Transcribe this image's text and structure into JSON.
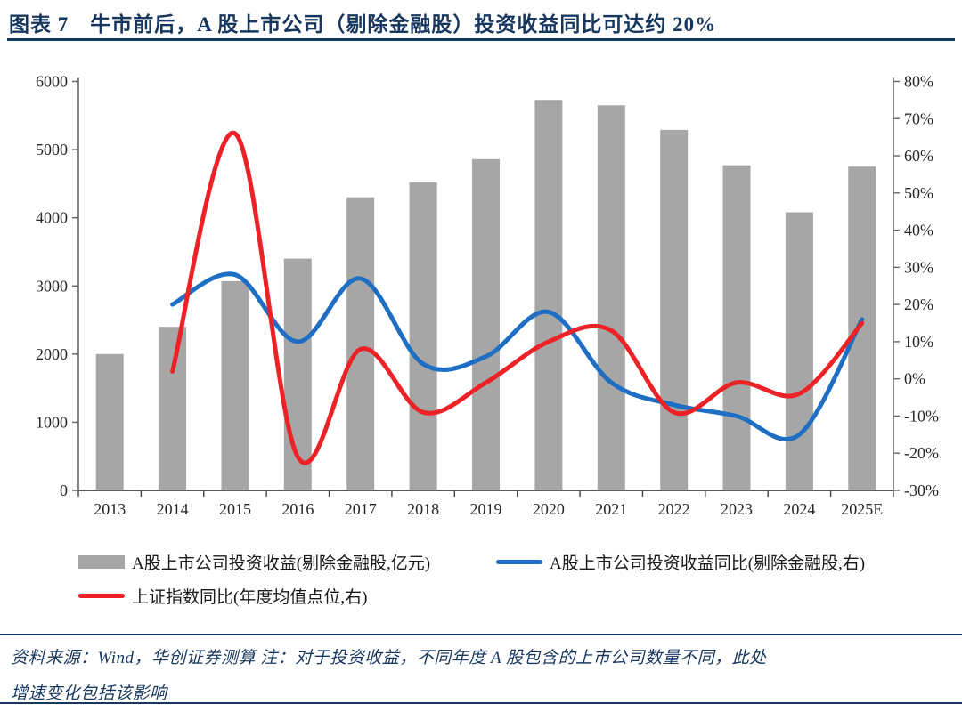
{
  "header": {
    "title": "图表 7　牛市前后，A 股上市公司（剔除金融股）投资收益同比可达约 20%"
  },
  "chart_data": {
    "type": "bar",
    "categories": [
      "2013",
      "2014",
      "2015",
      "2016",
      "2017",
      "2018",
      "2019",
      "2020",
      "2021",
      "2022",
      "2023",
      "2024",
      "2025E"
    ],
    "series": [
      {
        "name": "A股上市公司投资收益(剔除金融股,亿元)",
        "type": "bar",
        "axis": "left",
        "color": "#A6A6A6",
        "values": [
          2000,
          2400,
          3070,
          3400,
          4300,
          4520,
          4860,
          5730,
          5650,
          5290,
          4770,
          4080,
          4750
        ]
      },
      {
        "name": "A股上市公司投资收益同比(剔除金融股,右)",
        "type": "line",
        "axis": "right",
        "color": "#1E6FC4",
        "values": [
          null,
          20,
          28,
          10,
          27,
          4,
          6,
          18,
          -1,
          -7,
          -10,
          -15,
          16
        ]
      },
      {
        "name": "上证指数同比(年度均值点位,右)",
        "type": "line",
        "axis": "right",
        "color": "#EC2227",
        "values": [
          null,
          2,
          66,
          -21,
          8,
          -9,
          -1,
          10,
          13,
          -9,
          -1,
          -4,
          15
        ]
      }
    ],
    "left_axis": {
      "min": 0,
      "max": 6000,
      "step": 1000,
      "labels": [
        "0",
        "1000",
        "2000",
        "3000",
        "4000",
        "5000",
        "6000"
      ]
    },
    "right_axis": {
      "min": -30,
      "max": 80,
      "step": 10,
      "labels": [
        "-30%",
        "-20%",
        "-10%",
        "0%",
        "10%",
        "20%",
        "30%",
        "40%",
        "50%",
        "60%",
        "70%",
        "80%"
      ]
    },
    "grid": false,
    "legend_position": "bottom"
  },
  "footer": {
    "line1": "资料来源：Wind，华创证券测算 注：对于投资收益，不同年度 A 股包含的上市公司数量不同，此处",
    "line2": "增速变化包括该影响"
  },
  "colors": {
    "navy": "#17375E",
    "bar_gray": "#A6A6A6",
    "line_blue": "#1E6FC4",
    "line_red": "#EC2227",
    "axis_gray": "#666666",
    "tick_text": "#262626"
  }
}
